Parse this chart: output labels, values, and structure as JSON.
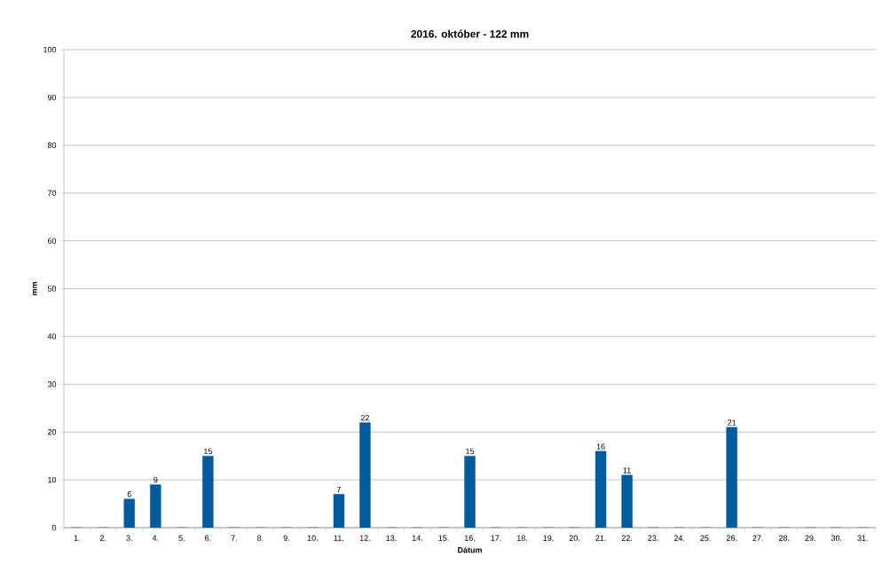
{
  "chart_data": {
    "type": "bar",
    "title": "2016. október - 122 mm",
    "xlabel": "Dátum",
    "ylabel": "mm",
    "categories": [
      "1.",
      "2.",
      "3.",
      "4.",
      "5.",
      "6.",
      "7.",
      "8.",
      "9.",
      "10.",
      "11.",
      "12.",
      "13.",
      "14.",
      "15.",
      "16.",
      "17.",
      "18.",
      "19.",
      "20.",
      "21.",
      "22.",
      "23.",
      "24.",
      "25.",
      "26.",
      "27.",
      "28.",
      "29.",
      "30.",
      "31."
    ],
    "values": [
      0,
      0,
      6,
      9,
      0,
      15,
      0,
      0,
      0,
      0,
      7,
      22,
      0,
      0,
      0,
      15,
      0,
      0,
      0,
      0,
      16,
      11,
      0,
      0,
      0,
      21,
      0,
      0,
      0,
      0,
      0
    ],
    "value_labels": [
      null,
      null,
      "6",
      "9",
      null,
      "15",
      null,
      null,
      null,
      null,
      "7",
      "22",
      null,
      null,
      null,
      "15",
      null,
      null,
      null,
      null,
      "16",
      "11",
      null,
      null,
      null,
      "21",
      null,
      null,
      null,
      null,
      null
    ],
    "color": "#005a9e",
    "ylim": [
      0,
      100
    ],
    "yticks": [
      0,
      10,
      20,
      30,
      40,
      50,
      60,
      70,
      80,
      90,
      100
    ],
    "grid": "y"
  }
}
